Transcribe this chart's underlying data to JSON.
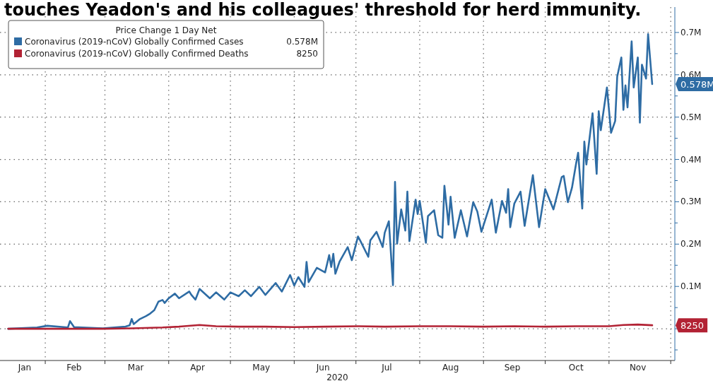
{
  "chart_data": {
    "type": "line",
    "title": "touches Yeadon's and his colleagues' threshold for herd immunity.",
    "xlabel": "2020",
    "legend_title": "Price Change 1 Day Net",
    "legend": "top left",
    "grid": true,
    "xlim": [
      "2020-01-10",
      "2020-12-03"
    ],
    "xticks": [
      {
        "value": "2020-01-22",
        "label": "Jan"
      },
      {
        "value": "2020-02-01",
        "label": null
      },
      {
        "value": "2020-02-15",
        "label": "Feb"
      },
      {
        "value": "2020-03-01",
        "label": null
      },
      {
        "value": "2020-03-16",
        "label": "Mar"
      },
      {
        "value": "2020-04-01",
        "label": null
      },
      {
        "value": "2020-04-15",
        "label": "Apr"
      },
      {
        "value": "2020-05-01",
        "label": null
      },
      {
        "value": "2020-05-16",
        "label": "May"
      },
      {
        "value": "2020-06-01",
        "label": null
      },
      {
        "value": "2020-06-15",
        "label": "Jun"
      },
      {
        "value": "2020-07-01",
        "label": null
      },
      {
        "value": "2020-07-16",
        "label": "Jul"
      },
      {
        "value": "2020-08-01",
        "label": null
      },
      {
        "value": "2020-08-16",
        "label": "Aug"
      },
      {
        "value": "2020-09-01",
        "label": null
      },
      {
        "value": "2020-09-15",
        "label": "Sep"
      },
      {
        "value": "2020-10-01",
        "label": null
      },
      {
        "value": "2020-10-16",
        "label": "Oct"
      },
      {
        "value": "2020-11-01",
        "label": null
      },
      {
        "value": "2020-11-15",
        "label": "Nov"
      },
      {
        "value": "2020-12-01",
        "label": null
      }
    ],
    "ylim": [
      -0.075,
      0.76
    ],
    "yticks": [
      {
        "value": -0.05,
        "label": null
      },
      {
        "value": 0,
        "label": null
      },
      {
        "value": 0.05,
        "label": null
      },
      {
        "value": 0.1,
        "label": "0.1M"
      },
      {
        "value": 0.15,
        "label": null
      },
      {
        "value": 0.2,
        "label": "0.2M"
      },
      {
        "value": 0.25,
        "label": null
      },
      {
        "value": 0.3,
        "label": "0.3M"
      },
      {
        "value": 0.35,
        "label": null
      },
      {
        "value": 0.4,
        "label": "0.4M"
      },
      {
        "value": 0.45,
        "label": null
      },
      {
        "value": 0.5,
        "label": "0.5M"
      },
      {
        "value": 0.55,
        "label": null
      },
      {
        "value": 0.6,
        "label": "0.6M"
      },
      {
        "value": 0.65,
        "label": null
      },
      {
        "value": 0.7,
        "label": "0.7M"
      }
    ],
    "annotations": [
      "0.578M",
      "8250"
    ],
    "series": [
      {
        "name": "Coronavirus (2019-nCoV) Globally Confirmed Cases",
        "color": "#2e6ca4",
        "x": [
          "2020-01-14",
          "2020-01-28",
          "2020-02-02",
          "2020-02-12",
          "2020-02-13",
          "2020-02-15",
          "2020-02-29",
          "2020-03-11",
          "2020-03-13",
          "2020-03-14",
          "2020-03-15",
          "2020-03-18",
          "2020-03-21",
          "2020-03-23",
          "2020-03-25",
          "2020-03-27",
          "2020-03-29",
          "2020-03-30",
          "2020-04-01",
          "2020-04-04",
          "2020-04-06",
          "2020-04-11",
          "2020-04-12",
          "2020-04-14",
          "2020-04-16",
          "2020-04-21",
          "2020-04-24",
          "2020-04-28",
          "2020-05-01",
          "2020-05-05",
          "2020-05-08",
          "2020-05-11",
          "2020-05-15",
          "2020-05-18",
          "2020-05-23",
          "2020-05-26",
          "2020-05-30",
          "2020-06-01",
          "2020-06-03",
          "2020-06-06",
          "2020-06-07",
          "2020-06-08",
          "2020-06-12",
          "2020-06-16",
          "2020-06-18",
          "2020-06-19",
          "2020-06-20",
          "2020-06-21",
          "2020-06-23",
          "2020-06-27",
          "2020-06-29",
          "2020-07-02",
          "2020-07-03",
          "2020-07-07",
          "2020-07-08",
          "2020-07-11",
          "2020-07-14",
          "2020-07-15",
          "2020-07-17",
          "2020-07-19",
          "2020-07-20",
          "2020-07-21",
          "2020-07-23",
          "2020-07-25",
          "2020-07-26",
          "2020-07-27",
          "2020-07-30",
          "2020-07-31",
          "2020-08-01",
          "2020-08-04",
          "2020-08-05",
          "2020-08-08",
          "2020-08-10",
          "2020-08-12",
          "2020-08-13",
          "2020-08-15",
          "2020-08-16",
          "2020-08-18",
          "2020-08-21",
          "2020-08-24",
          "2020-08-27",
          "2020-08-29",
          "2020-08-31",
          "2020-09-05",
          "2020-09-07",
          "2020-09-10",
          "2020-09-12",
          "2020-09-13",
          "2020-09-14",
          "2020-09-16",
          "2020-09-19",
          "2020-09-21",
          "2020-09-25",
          "2020-09-28",
          "2020-10-01",
          "2020-10-05",
          "2020-10-09",
          "2020-10-10",
          "2020-10-12",
          "2020-10-14",
          "2020-10-16",
          "2020-10-17",
          "2020-10-19",
          "2020-10-20",
          "2020-10-21",
          "2020-10-24",
          "2020-10-26",
          "2020-10-27",
          "2020-10-28",
          "2020-10-31",
          "2020-11-02",
          "2020-11-04",
          "2020-11-05",
          "2020-11-07",
          "2020-11-08",
          "2020-11-09",
          "2020-11-10",
          "2020-11-12",
          "2020-11-13",
          "2020-11-15",
          "2020-11-16",
          "2020-11-17",
          "2020-11-19",
          "2020-11-20",
          "2020-11-22"
        ],
        "values": [
          0,
          0.003,
          0.007,
          0.003,
          0.018,
          0.004,
          0.001,
          0.005,
          0.008,
          0.023,
          0.011,
          0.023,
          0.03,
          0.036,
          0.044,
          0.064,
          0.068,
          0.061,
          0.072,
          0.083,
          0.072,
          0.088,
          0.08,
          0.069,
          0.094,
          0.072,
          0.086,
          0.069,
          0.086,
          0.077,
          0.091,
          0.077,
          0.099,
          0.08,
          0.108,
          0.088,
          0.127,
          0.102,
          0.122,
          0.099,
          0.158,
          0.11,
          0.144,
          0.133,
          0.174,
          0.146,
          0.177,
          0.13,
          0.158,
          0.193,
          0.162,
          0.218,
          0.209,
          0.17,
          0.209,
          0.229,
          0.193,
          0.227,
          0.254,
          0.103,
          0.347,
          0.201,
          0.282,
          0.232,
          0.324,
          0.207,
          0.305,
          0.271,
          0.302,
          0.203,
          0.266,
          0.28,
          0.221,
          0.215,
          0.338,
          0.246,
          0.312,
          0.215,
          0.28,
          0.218,
          0.299,
          0.277,
          0.229,
          0.305,
          0.227,
          0.302,
          0.274,
          0.33,
          0.24,
          0.296,
          0.324,
          0.243,
          0.363,
          0.24,
          0.33,
          0.282,
          0.358,
          0.361,
          0.299,
          0.333,
          0.39,
          0.416,
          0.284,
          0.442,
          0.388,
          0.509,
          0.366,
          0.514,
          0.469,
          0.57,
          0.463,
          0.491,
          0.596,
          0.641,
          0.517,
          0.575,
          0.523,
          0.679,
          0.57,
          0.641,
          0.487,
          0.624,
          0.591,
          0.696,
          0.578
        ]
      },
      {
        "name": "Coronavirus (2019-nCoV) Globally Confirmed Deaths",
        "color": "#b22234",
        "x": [
          "2020-01-14",
          "2020-02-29",
          "2020-03-14",
          "2020-03-29",
          "2020-04-06",
          "2020-04-16",
          "2020-04-24",
          "2020-05-05",
          "2020-05-18",
          "2020-06-01",
          "2020-06-16",
          "2020-07-02",
          "2020-07-15",
          "2020-08-01",
          "2020-08-16",
          "2020-09-01",
          "2020-09-16",
          "2020-10-01",
          "2020-10-16",
          "2020-11-01",
          "2020-11-08",
          "2020-11-15",
          "2020-11-22"
        ],
        "values": [
          0,
          0,
          0.001,
          0.003,
          0.005,
          0.009,
          0.006,
          0.005,
          0.005,
          0.004,
          0.005,
          0.006,
          0.005,
          0.006,
          0.006,
          0.005,
          0.006,
          0.005,
          0.006,
          0.006,
          0.009,
          0.01,
          0.00825
        ]
      }
    ]
  }
}
